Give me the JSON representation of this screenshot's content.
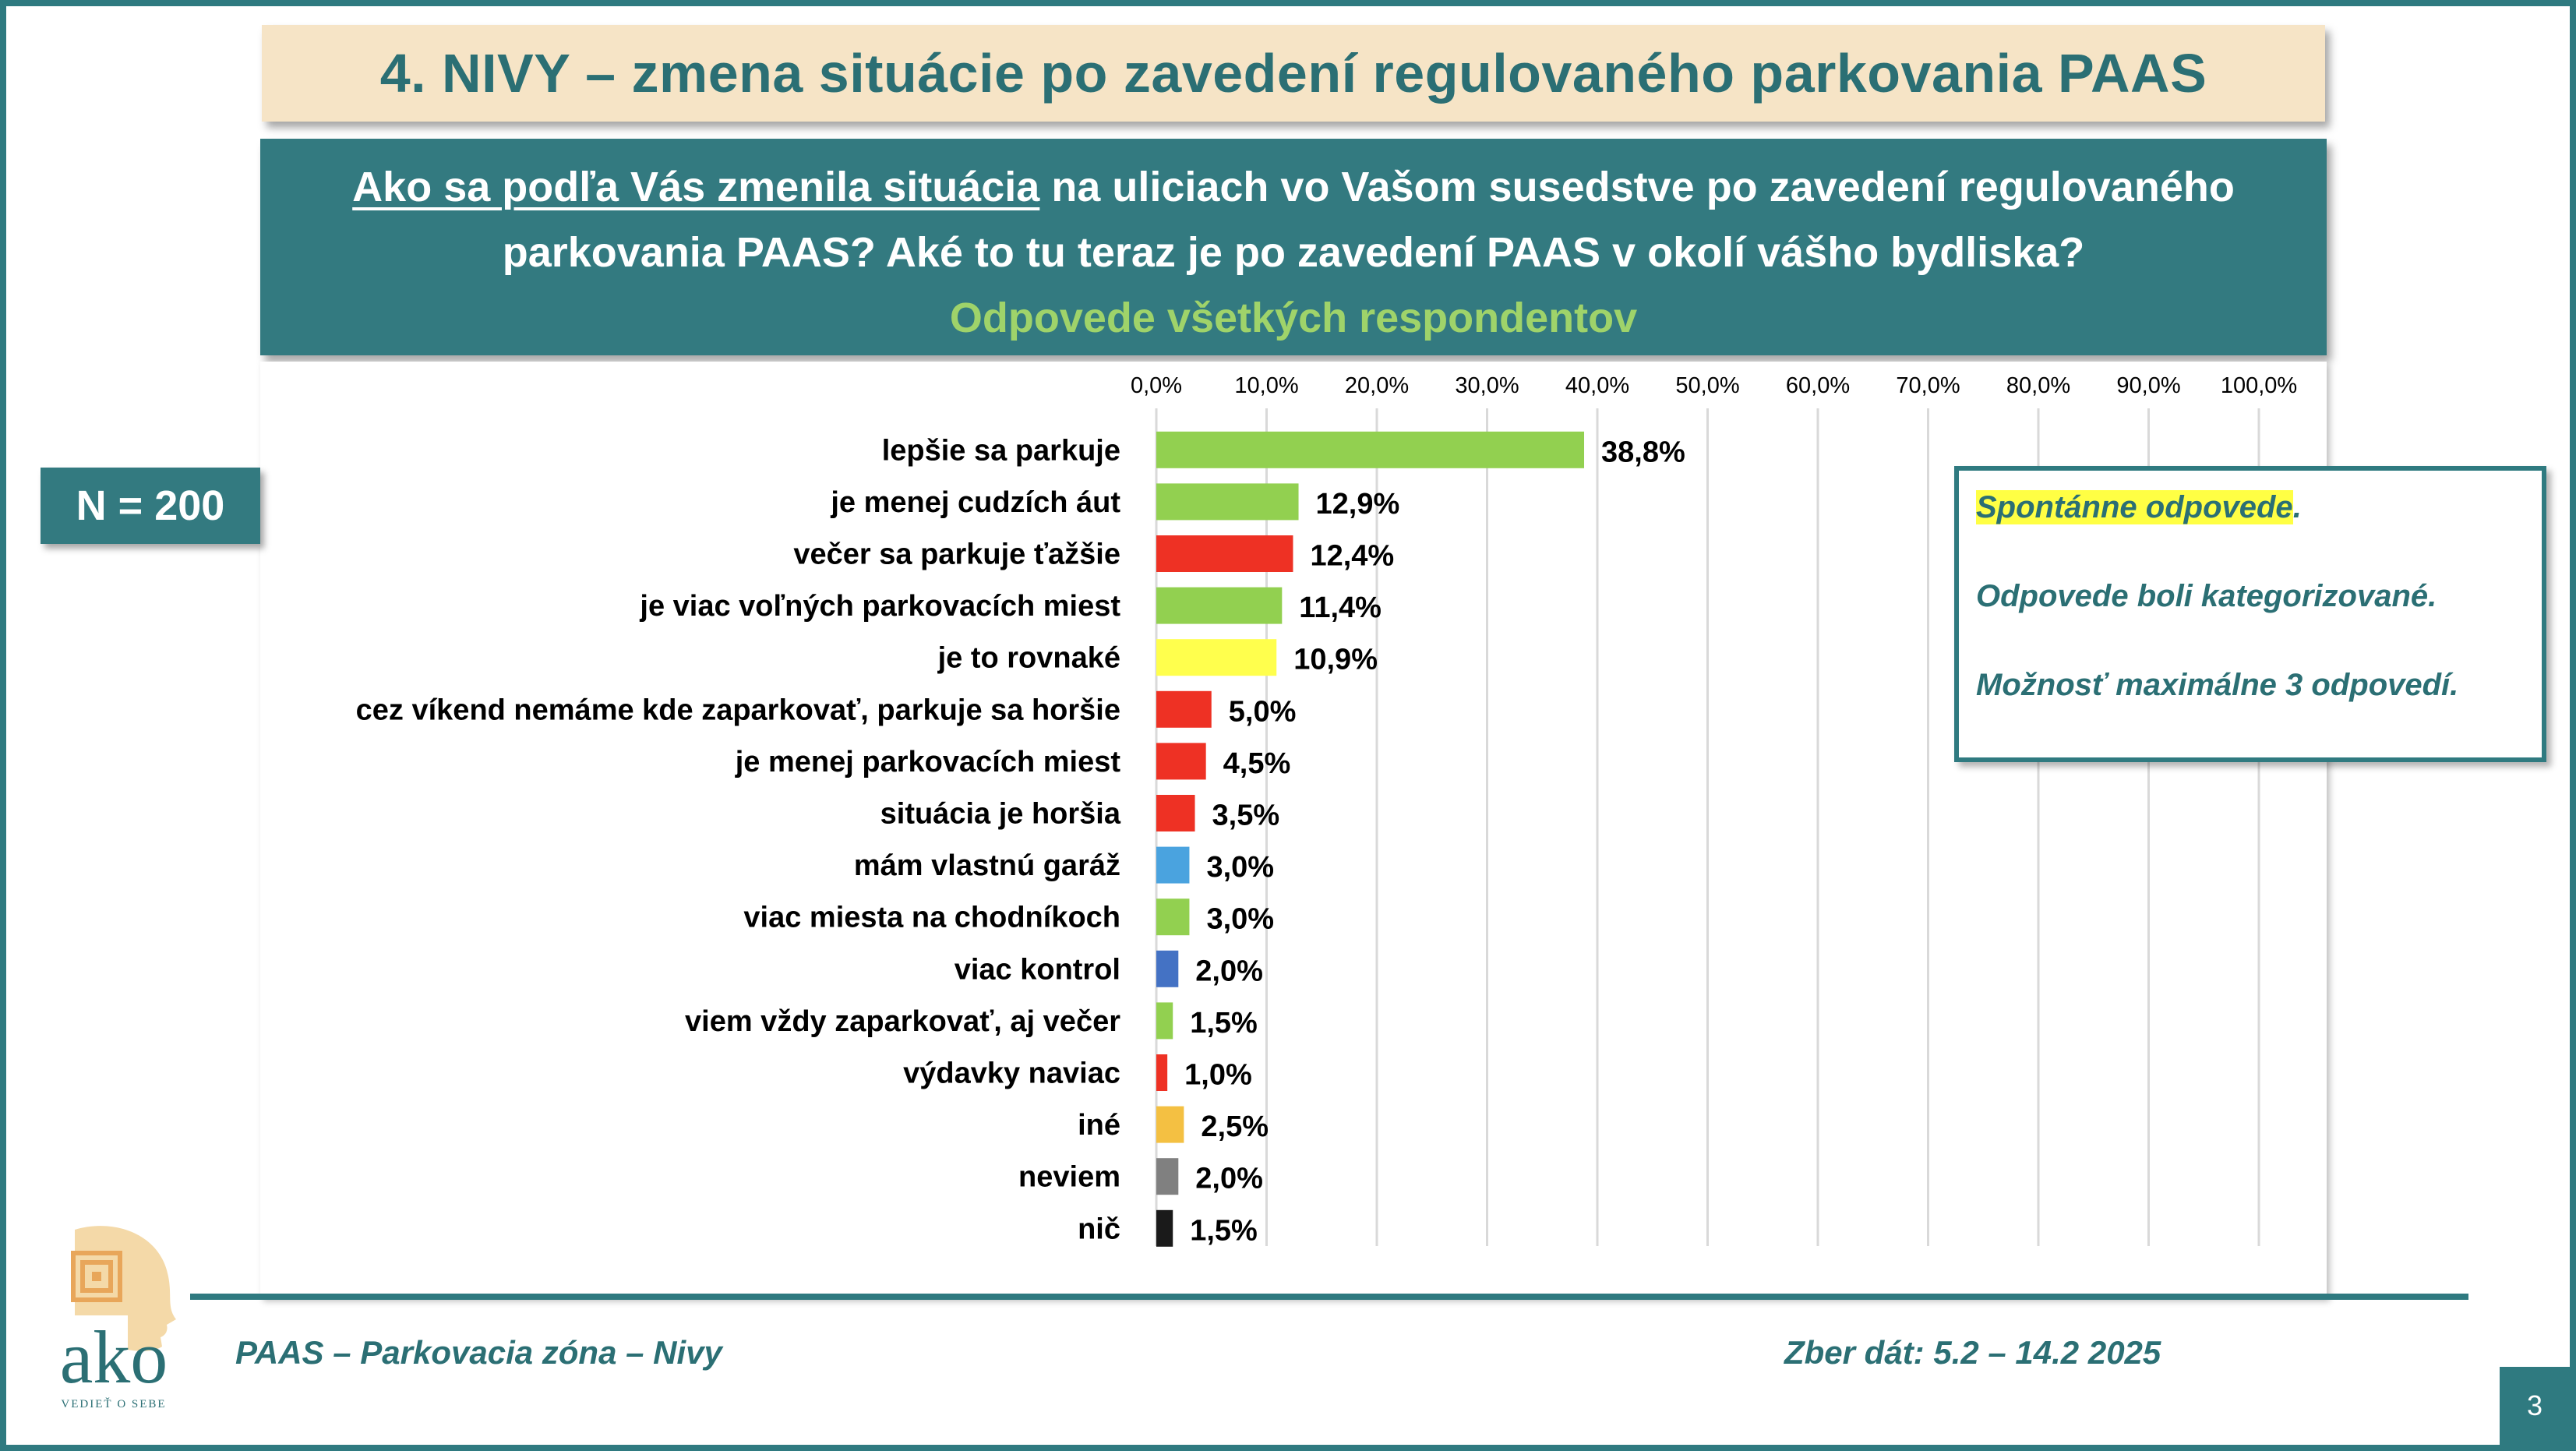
{
  "slide": {
    "title": "4. NIVY – zmena situácie po zavedení  regulovaného parkovania PAAS",
    "question": {
      "underlined": "Ako sa podľa Vás zmenila situácia",
      "line1_rest": " na uliciach vo Vašom susedstve po zavedení regulovaného",
      "line2": "parkovania PAAS? Aké to tu teraz je po zavedení PAAS v okolí vášho bydliska?",
      "subtitle": "Odpovede všetkých respondentov"
    },
    "sample_size": "N = 200",
    "notes": {
      "line1": "Spontánne odpovede",
      "line1_suffix": ".",
      "line2": "Odpovede boli kategorizované.",
      "line3": "Možnosť maximálne 3 odpovedí."
    },
    "footer": {
      "left": "PAAS – Parkovacia zóna – Nivy",
      "right": "Zber dát: 5.2 – 14.2 2025"
    },
    "logo": {
      "text": "ako",
      "tagline": "VEDIEŤ O SEBE",
      "icon": "head-profile-spiral-icon"
    },
    "page_number": "3",
    "colors": {
      "teal": "#337a80",
      "title_bg": "#f6e4c6",
      "subtitle_green": "#9fd36a",
      "highlight": "#ffff44"
    }
  },
  "chart_data": {
    "type": "bar",
    "orientation": "horizontal",
    "title": "",
    "xlabel": "",
    "ylabel": "",
    "xlim": [
      0,
      100
    ],
    "x_ticks": [
      "0,0%",
      "10,0%",
      "20,0%",
      "30,0%",
      "40,0%",
      "50,0%",
      "60,0%",
      "70,0%",
      "80,0%",
      "90,0%",
      "100,0%"
    ],
    "tick_position": "top",
    "grid": true,
    "categories": [
      "lepšie sa parkuje",
      "je menej cudzích áut",
      "večer sa parkuje ťažšie",
      "je viac voľných parkovacích miest",
      "je to rovnaké",
      "cez víkend nemáme kde zaparkovať, parkuje sa horšie",
      "je menej parkovacích miest",
      "situácia je horšia",
      "mám vlastnú garáž",
      "viac miesta na chodníkoch",
      "viac kontrol",
      "viem vždy zaparkovať, aj večer",
      "výdavky naviac",
      "iné",
      "neviem",
      "nič"
    ],
    "values": [
      38.8,
      12.9,
      12.4,
      11.4,
      10.9,
      5.0,
      4.5,
      3.5,
      3.0,
      3.0,
      2.0,
      1.5,
      1.0,
      2.5,
      2.0,
      1.5
    ],
    "value_labels": [
      "38,8%",
      "12,9%",
      "12,4%",
      "11,4%",
      "10,9%",
      "5,0%",
      "4,5%",
      "3,5%",
      "3,0%",
      "3,0%",
      "2,0%",
      "1,5%",
      "1,0%",
      "2,5%",
      "2,0%",
      "1,5%"
    ],
    "bar_colors": [
      "#92d050",
      "#92d050",
      "#ee3124",
      "#92d050",
      "#ffff4d",
      "#ee3124",
      "#ee3124",
      "#ee3124",
      "#4aa3df",
      "#92d050",
      "#4472c4",
      "#92d050",
      "#ee3124",
      "#f4c042",
      "#808080",
      "#1a1a1a"
    ]
  }
}
